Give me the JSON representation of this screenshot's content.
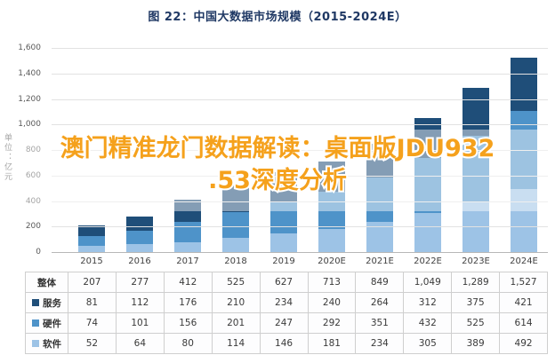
{
  "title": "图 22：中国大数据市场规模（2015-2024E）",
  "watermark": {
    "line1": "澳门精准龙门数据解读：桌面版JDU932",
    "line2": ".53深度分析"
  },
  "chart_data": {
    "type": "bar",
    "stacked": true,
    "title": "图 22：中国大数据市场规模（2015-2024E）",
    "ylabel": "单位：亿元",
    "xlabel": "",
    "ylim": [
      0,
      1600
    ],
    "grid": true,
    "yticks": [
      "0",
      "200",
      "400",
      "600",
      "800",
      "1,000",
      "1,200",
      "1,400",
      "1,600"
    ],
    "categories": [
      "2015",
      "2016",
      "2017",
      "2018",
      "2019",
      "2020E",
      "2021E",
      "2022E",
      "2023E",
      "2024E"
    ],
    "series": [
      {
        "name": "软件",
        "color": "#9dc3e6",
        "values": [
          52,
          64,
          80,
          114,
          146,
          181,
          234,
          305,
          389,
          492
        ]
      },
      {
        "name": "硬件",
        "color": "#4e93c9",
        "values": [
          74,
          101,
          156,
          201,
          247,
          292,
          351,
          432,
          525,
          614
        ]
      },
      {
        "name": "服务",
        "color": "#1f4e79",
        "values": [
          81,
          112,
          176,
          210,
          234,
          240,
          264,
          312,
          375,
          421
        ]
      }
    ],
    "totals": {
      "name": "整体",
      "values": [
        207,
        277,
        412,
        525,
        627,
        713,
        849,
        1049,
        1289,
        1527
      ]
    }
  },
  "table": {
    "rows": [
      {
        "label": "整体",
        "legend": null,
        "values": [
          "207",
          "277",
          "412",
          "525",
          "627",
          "713",
          "849",
          "1,049",
          "1,289",
          "1,527"
        ]
      },
      {
        "label": "服务",
        "legend": "#1f4e79",
        "values": [
          "81",
          "112",
          "176",
          "210",
          "234",
          "240",
          "264",
          "312",
          "375",
          "421"
        ]
      },
      {
        "label": "硬件",
        "legend": "#4e93c9",
        "values": [
          "74",
          "101",
          "156",
          "201",
          "247",
          "292",
          "351",
          "432",
          "525",
          "614"
        ]
      },
      {
        "label": "软件",
        "legend": "#9dc3e6",
        "values": [
          "52",
          "64",
          "80",
          "114",
          "146",
          "181",
          "234",
          "305",
          "389",
          "492"
        ]
      }
    ]
  }
}
